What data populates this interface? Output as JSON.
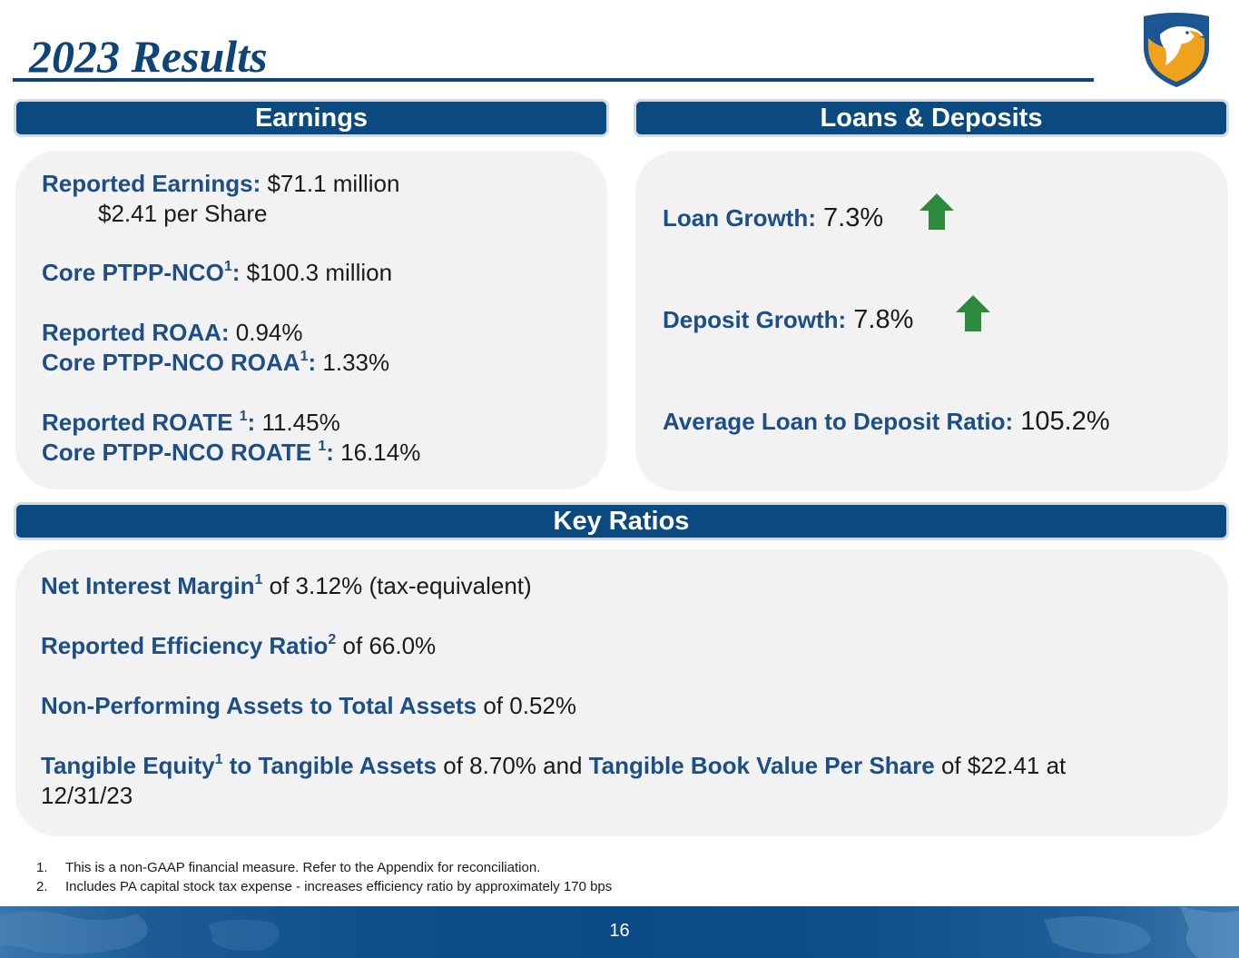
{
  "title": "2023 Results",
  "sections": {
    "earnings": "Earnings",
    "loans_deposits": "Loans & Deposits",
    "key_ratios": "Key Ratios"
  },
  "earnings": {
    "reported_earnings_label": "Reported Earnings:",
    "reported_earnings_value": " $71.1 million",
    "per_share": "$2.41 per Share",
    "core_ptpp_label": "Core PTPP-NCO",
    "core_ptpp_sup": "1",
    "core_ptpp_colon": ":",
    "core_ptpp_value": " $100.3 million",
    "roaa_label": "Reported ROAA:",
    "roaa_value": " 0.94%",
    "core_roaa_label": "Core PTPP-NCO ROAA",
    "core_roaa_sup": "1",
    "core_roaa_colon": ":",
    "core_roaa_value": " 1.33%",
    "roate_label": "Reported ROATE ",
    "roate_sup": "1",
    "roate_colon": ":",
    "roate_value": " 11.45%",
    "core_roate_label": "Core PTPP-NCO ROATE ",
    "core_roate_sup": "1",
    "core_roate_colon": ":",
    "core_roate_value": " 16.14%"
  },
  "loans": {
    "loan_growth_label": "Loan Growth:",
    "loan_growth_value": " 7.3%",
    "deposit_growth_label": "Deposit Growth:",
    "deposit_growth_value": " 7.8%",
    "ltd_label": "Average Loan to Deposit Ratio:",
    "ltd_value": " 105.2%"
  },
  "ratios": {
    "nim_label": "Net Interest Margin",
    "nim_sup": "1",
    "nim_value": " of 3.12% (tax-equivalent)",
    "eff_label": "Reported Efficiency Ratio",
    "eff_sup": "2",
    "eff_value": " of 66.0%",
    "npa_label": "Non-Performing Assets to Total Assets",
    "npa_value": " of 0.52%",
    "te_label": "Tangible Equity",
    "te_sup": "1",
    "te_label2": " to Tangible Assets",
    "te_value": " of 8.70% and ",
    "tbv_label": "Tangible Book Value Per Share",
    "tbv_value": " of $22.41 at",
    "date": "12/31/23"
  },
  "footnotes": [
    {
      "num": "1.",
      "text": "This is a non-GAAP financial measure. Refer to the Appendix for reconciliation."
    },
    {
      "num": "2.",
      "text": "Includes PA capital stock tax expense - increases efficiency ratio by approximately 170 bps"
    }
  ],
  "page_number": "16",
  "colors": {
    "title": "#0f4478",
    "bar": "#0b4a80",
    "label": "#1d4f86",
    "panel": "#f2f2f2",
    "arrow": "#2e8b3e",
    "logo_gold": "#f0a21d"
  },
  "icons": {
    "logo": "eagle-shield-logo",
    "up_arrow": "up-arrow-icon"
  }
}
